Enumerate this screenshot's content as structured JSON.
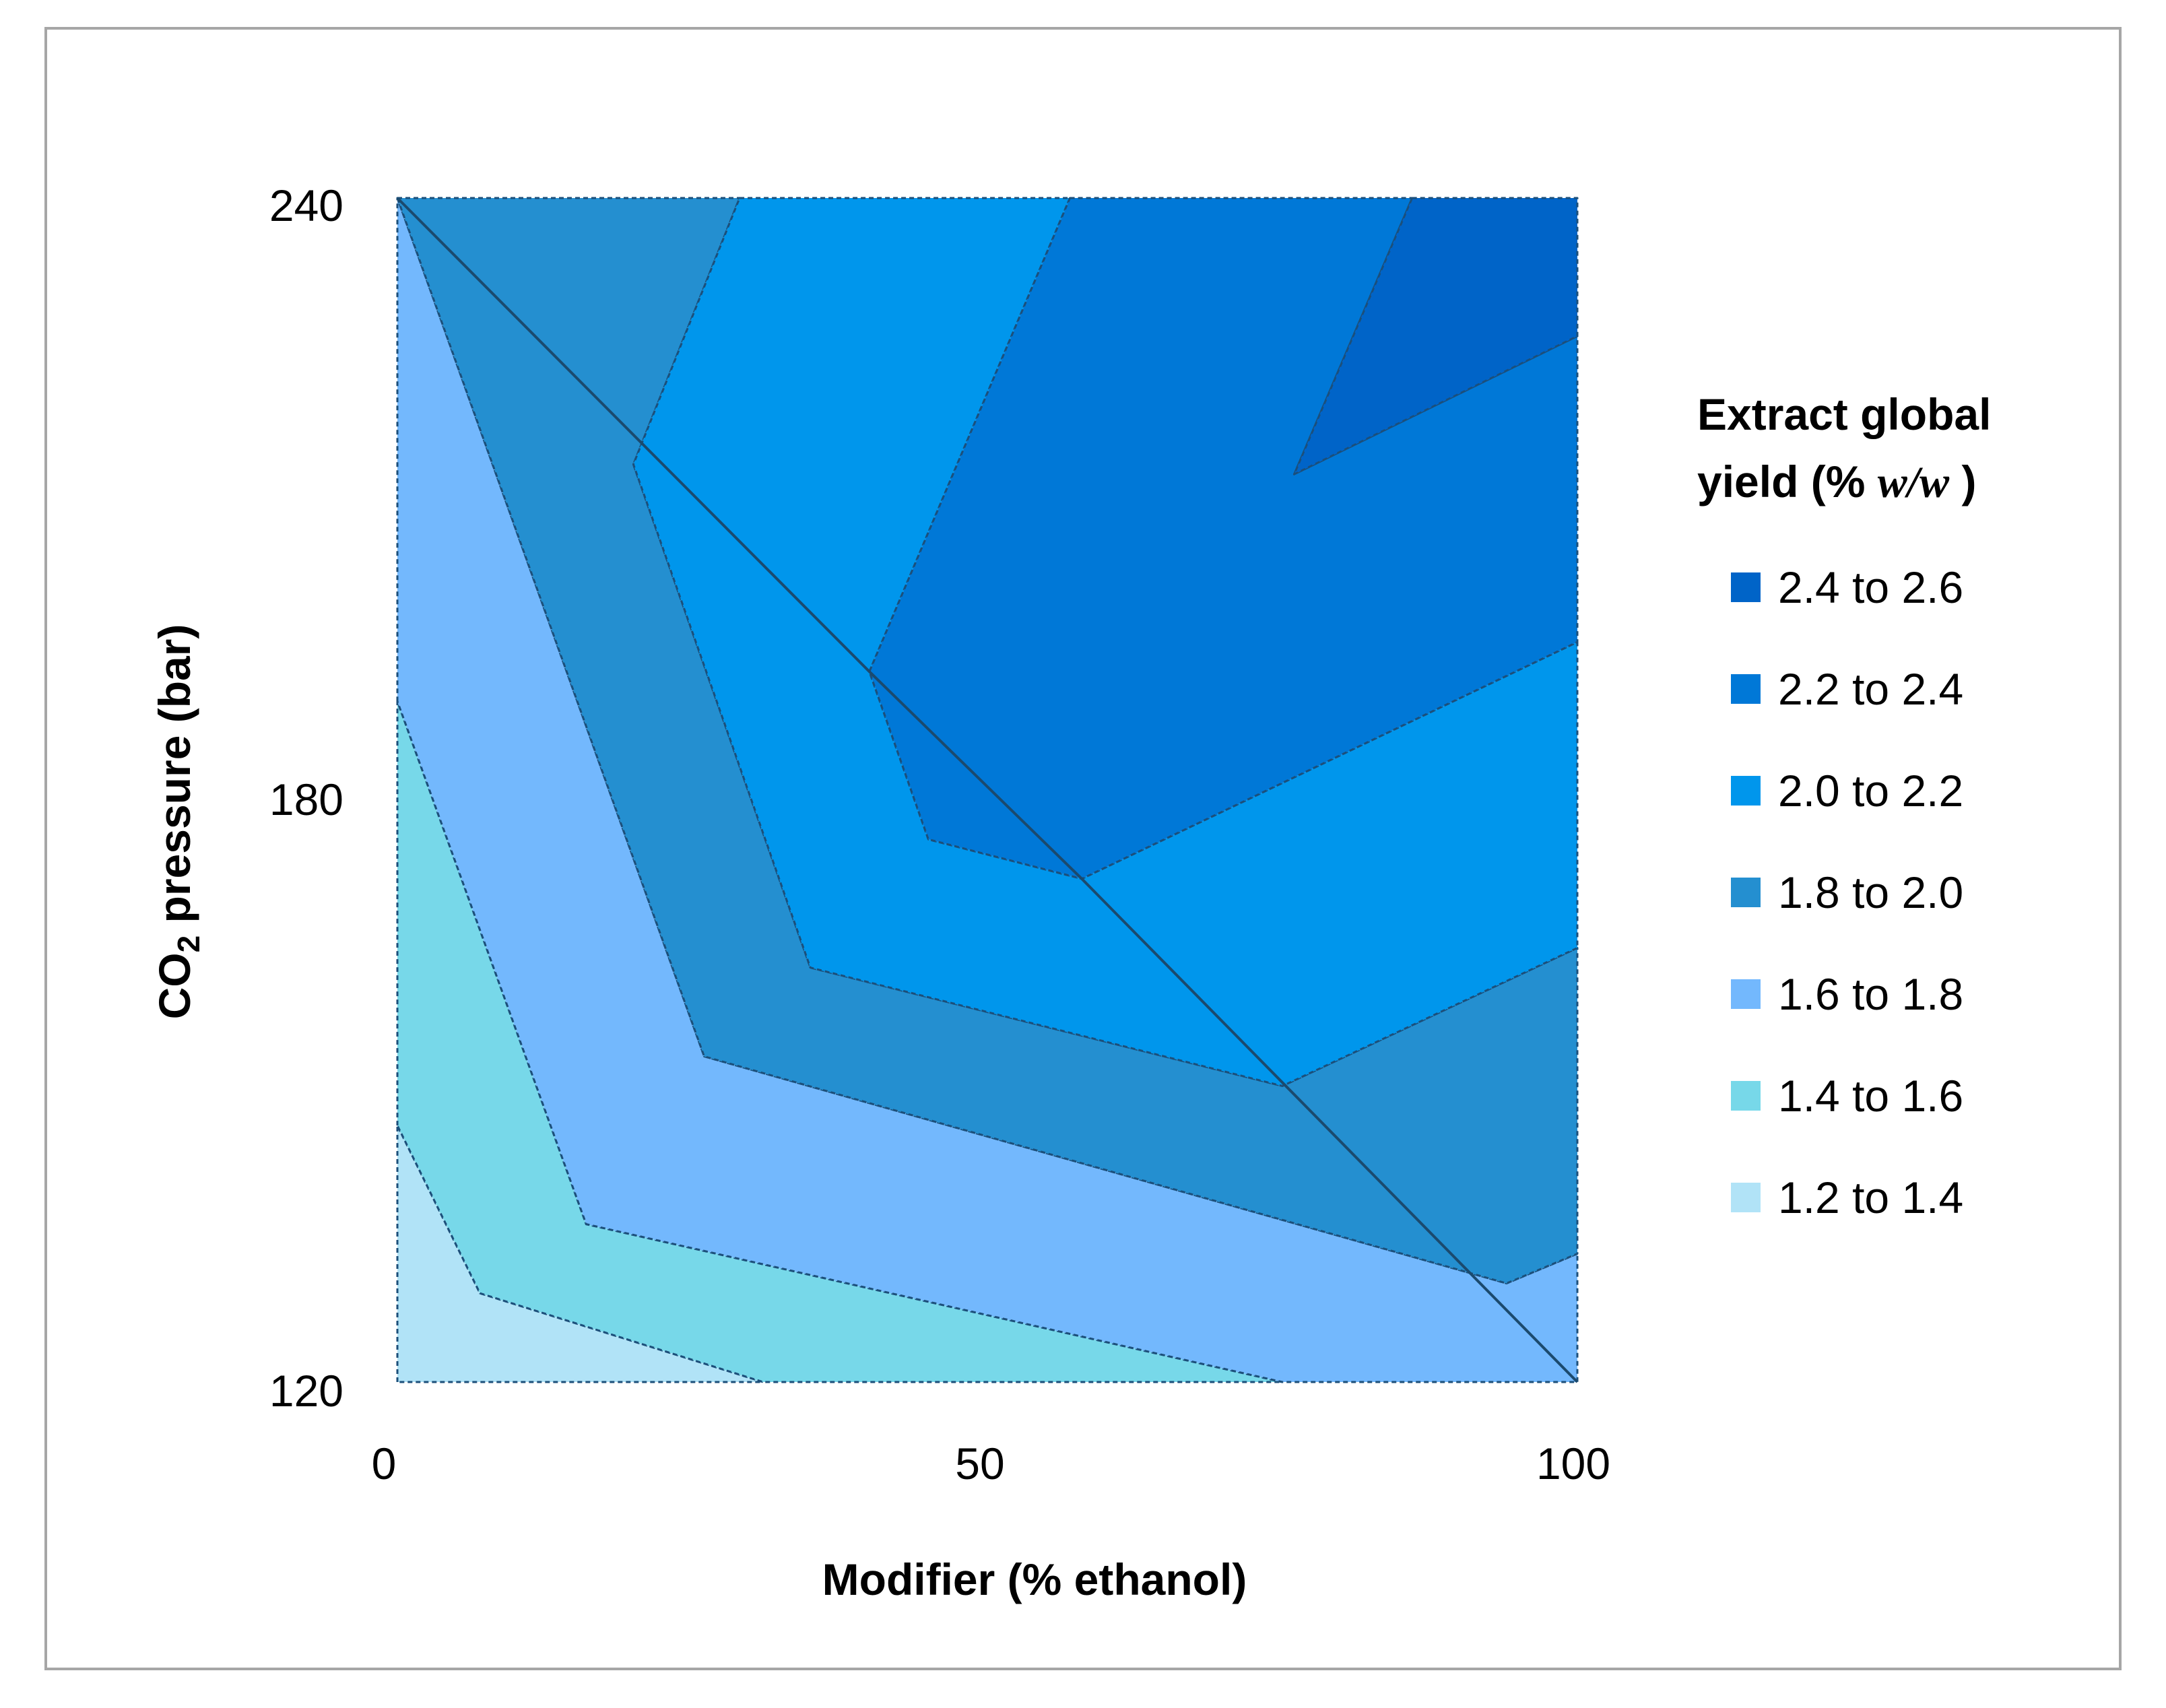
{
  "chart_data": {
    "type": "contour",
    "xlabel": "Modifier (% ethanol)",
    "ylabel_parts": {
      "pre": "CO",
      "sub": "2",
      "post": " pressure (bar)"
    },
    "xlim": [
      0,
      100
    ],
    "ylim": [
      120,
      240
    ],
    "x_ticks": [
      "0",
      "50",
      "100"
    ],
    "y_ticks": [
      "120",
      "180",
      "240"
    ],
    "legend_title_line1": "Extract global",
    "legend_title_line2_pre": "yield (% ",
    "legend_title_italic": "w/w",
    "legend_title_line2_post": " )",
    "levels": [
      {
        "range": "2.4 to 2.6",
        "min": 2.4,
        "max": 2.6,
        "color": "#0064c8"
      },
      {
        "range": "2.2 to 2.4",
        "min": 2.2,
        "max": 2.4,
        "color": "#0078d7"
      },
      {
        "range": "2.0 to 2.2",
        "min": 2.0,
        "max": 2.2,
        "color": "#0096ec"
      },
      {
        "range": "1.8 to 2.0",
        "min": 1.8,
        "max": 2.0,
        "color": "#248fd0"
      },
      {
        "range": "1.6 to 1.8",
        "min": 1.6,
        "max": 1.8,
        "color": "#73b8fd"
      },
      {
        "range": "1.4 to 1.6",
        "min": 1.4,
        "max": 1.6,
        "color": "#77d8e9"
      },
      {
        "range": "1.2 to 1.4",
        "min": 1.2,
        "max": 1.4,
        "color": "#b1e3f7"
      }
    ],
    "regions": [
      {
        "level": "1.2 to 1.4",
        "points": [
          [
            0,
            120
          ],
          [
            0,
            146
          ],
          [
            7,
            129
          ],
          [
            31,
            120
          ]
        ]
      },
      {
        "level": "1.4 to 1.6",
        "points": [
          [
            0,
            146
          ],
          [
            0,
            189
          ],
          [
            16,
            136
          ],
          [
            75,
            120
          ],
          [
            31,
            120
          ],
          [
            7,
            129
          ]
        ]
      },
      {
        "level": "1.6 to 1.8",
        "points": [
          [
            0,
            189
          ],
          [
            0,
            240
          ],
          [
            26,
            153
          ],
          [
            94,
            130
          ],
          [
            100,
            133
          ],
          [
            100,
            120
          ],
          [
            75,
            120
          ],
          [
            16,
            136
          ]
        ]
      },
      {
        "level": "1.8 to 2.0",
        "points": [
          [
            0,
            240
          ],
          [
            29,
            240
          ],
          [
            20,
            213
          ],
          [
            35,
            162
          ],
          [
            75,
            150
          ],
          [
            100,
            164
          ],
          [
            100,
            133
          ],
          [
            94,
            130
          ],
          [
            26,
            153
          ]
        ]
      },
      {
        "level": "2.0 to 2.2",
        "points": [
          [
            29,
            240
          ],
          [
            57,
            240
          ],
          [
            40,
            192
          ],
          [
            45,
            175
          ],
          [
            58,
            171
          ],
          [
            100,
            195
          ],
          [
            100,
            164
          ],
          [
            75,
            150
          ],
          [
            35,
            162
          ],
          [
            20,
            213
          ]
        ]
      },
      {
        "level": "2.2 to 2.4",
        "points": [
          [
            57,
            240
          ],
          [
            86,
            240
          ],
          [
            76,
            212
          ],
          [
            100,
            226
          ],
          [
            100,
            195
          ],
          [
            58,
            171
          ],
          [
            45,
            175
          ],
          [
            40,
            192
          ]
        ]
      },
      {
        "level": "2.4 to 2.6",
        "points": [
          [
            86,
            240
          ],
          [
            100,
            240
          ],
          [
            100,
            226
          ],
          [
            76,
            212
          ]
        ]
      }
    ],
    "lines": [
      {
        "points": [
          [
            0,
            240
          ],
          [
            40,
            192
          ],
          [
            58,
            171
          ],
          [
            100,
            120
          ]
        ]
      }
    ]
  }
}
